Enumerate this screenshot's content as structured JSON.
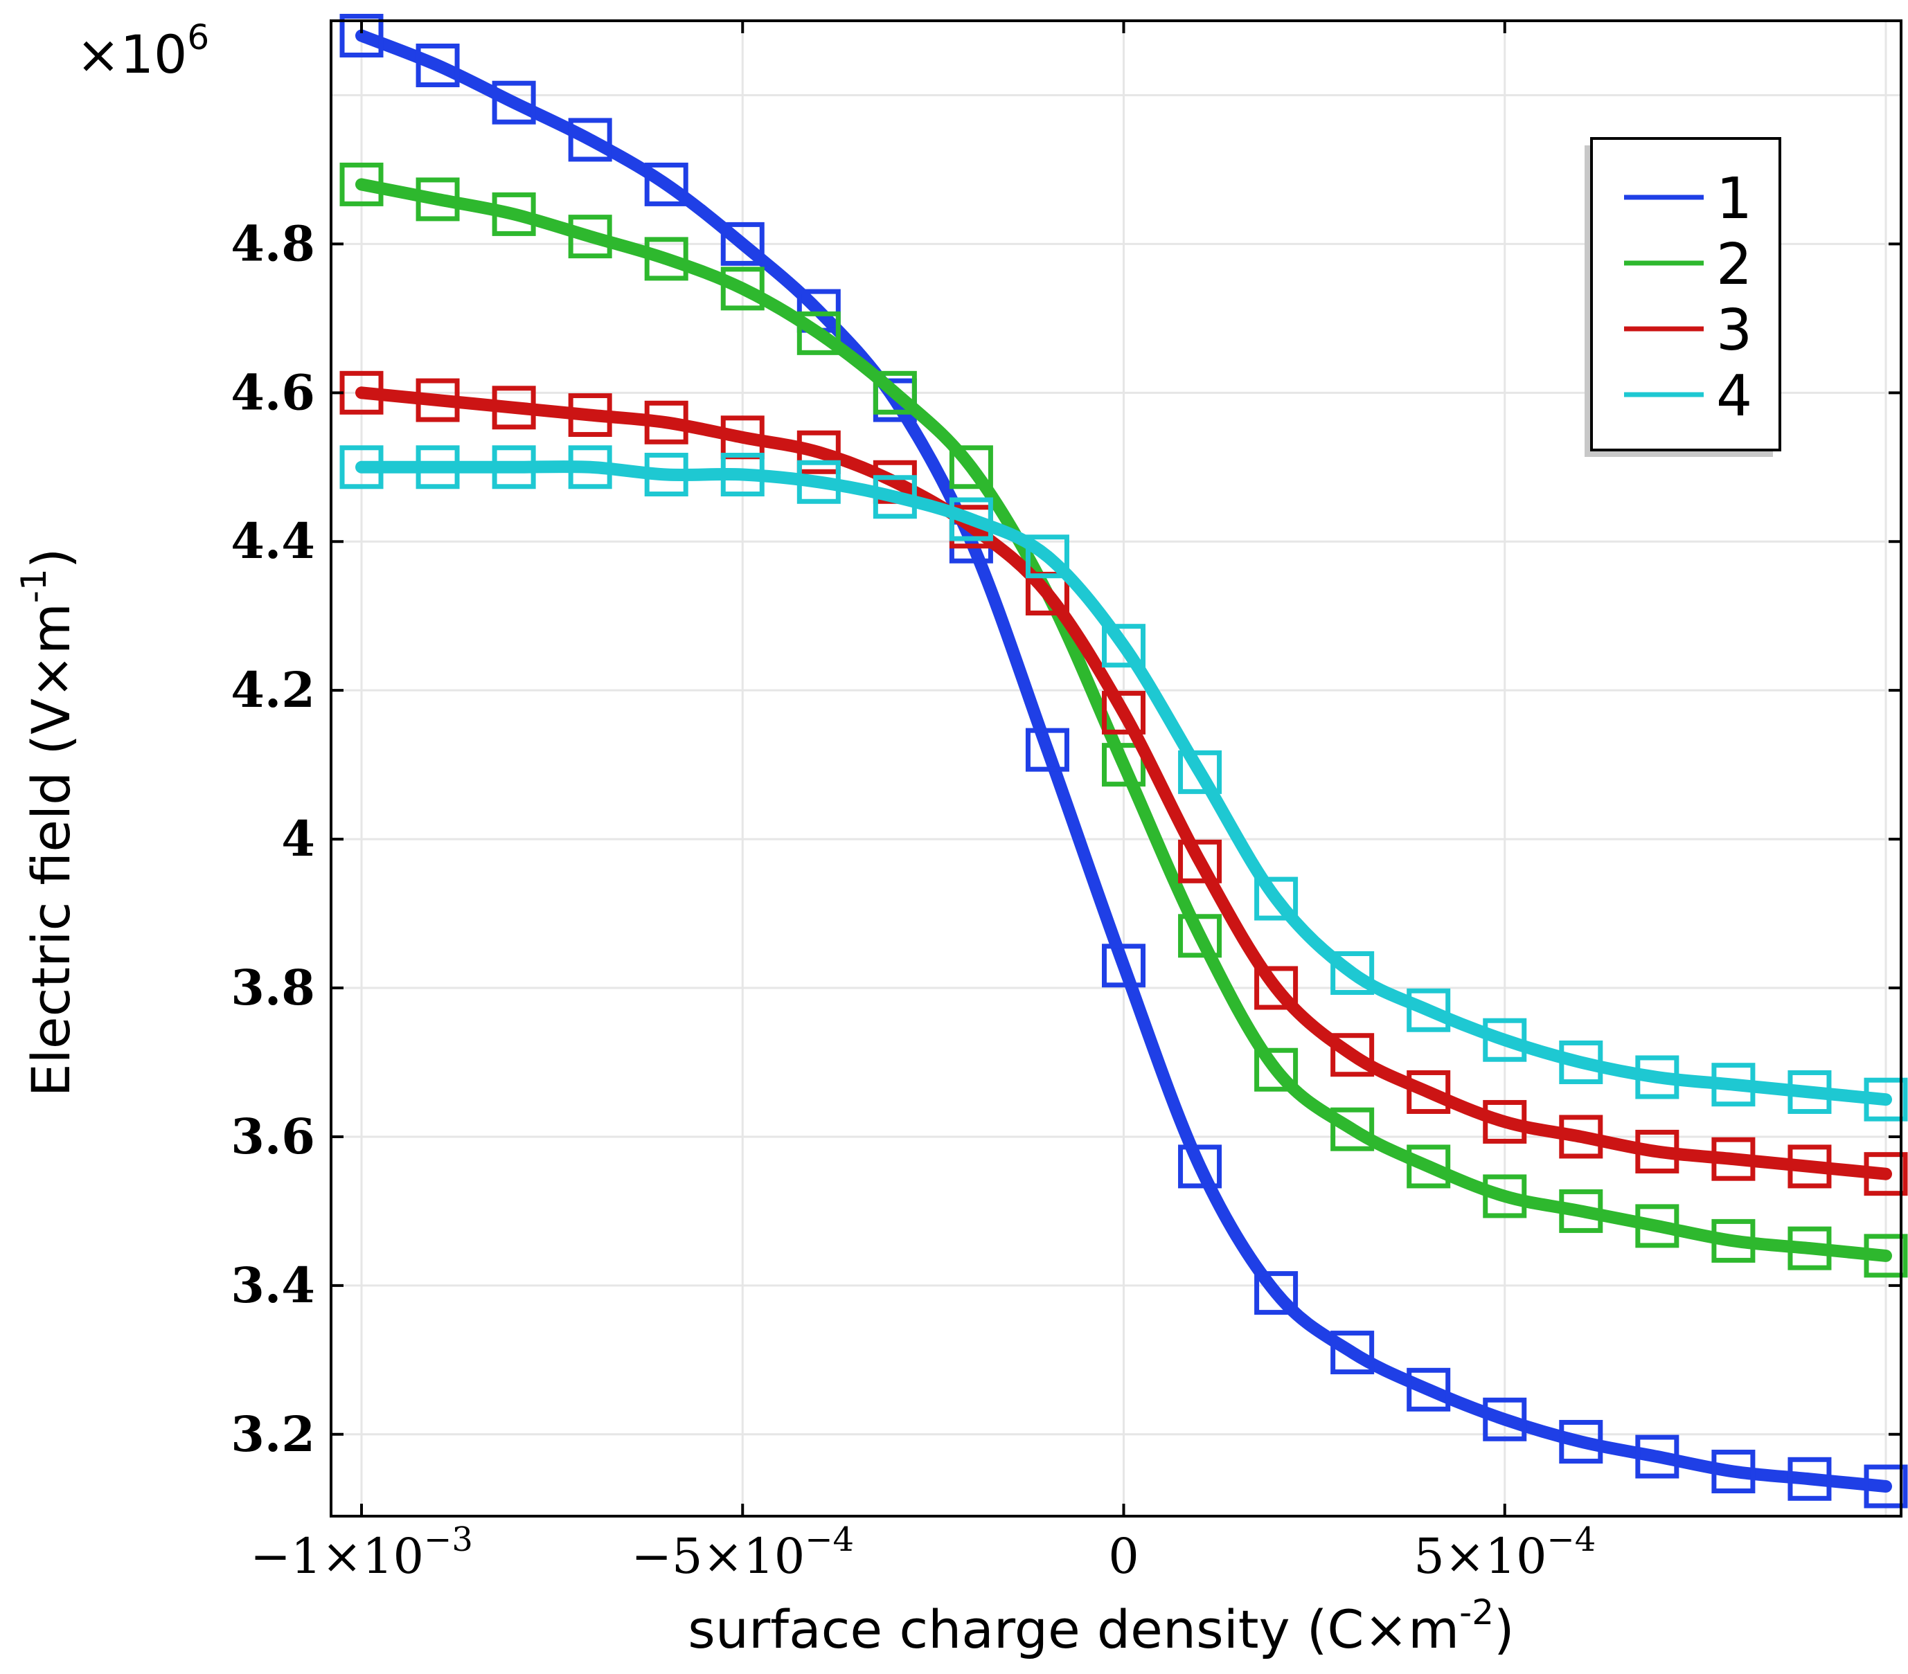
{
  "chart_data": {
    "type": "line",
    "title": "",
    "multiplier_label": "×10",
    "multiplier_exponent": "6",
    "ylabel": "Electric field (V×m",
    "ylabel_exponent": "-1",
    "ylabel_close": ")",
    "xlabel": "surface charge density (C×m",
    "xlabel_exponent": "-2",
    "xlabel_close": ")",
    "xlim": [
      -0.00104,
      0.00102
    ],
    "ylim": [
      3.09,
      5.1
    ],
    "x_ticks": [
      {
        "value": -0.001,
        "mantissa": "−1×10",
        "exponent": "−3"
      },
      {
        "value": -0.0005,
        "mantissa": "−5×10",
        "exponent": "−4"
      },
      {
        "value": 0,
        "mantissa": "0",
        "exponent": ""
      },
      {
        "value": 0.0005,
        "mantissa": "5×10",
        "exponent": "−4"
      }
    ],
    "y_ticks": [
      {
        "value": 3.2,
        "label": "3.2"
      },
      {
        "value": 3.4,
        "label": "3.4"
      },
      {
        "value": 3.6,
        "label": "3.6"
      },
      {
        "value": 3.8,
        "label": "3.8"
      },
      {
        "value": 4.0,
        "label": "4"
      },
      {
        "value": 4.2,
        "label": "4.2"
      },
      {
        "value": 4.4,
        "label": "4.4"
      },
      {
        "value": 4.6,
        "label": "4.6"
      },
      {
        "value": 4.8,
        "label": "4.8"
      }
    ],
    "x_grid": [
      -0.001,
      -0.0005,
      0,
      0.0005,
      0.001
    ],
    "y_grid": [
      3.2,
      3.4,
      3.6,
      3.8,
      4.0,
      4.2,
      4.4,
      4.6,
      4.8,
      5.0
    ],
    "grid": true,
    "legend_position": "top-right",
    "x": [
      -0.001,
      -0.0009,
      -0.0008,
      -0.0007,
      -0.0006,
      -0.0005,
      -0.0004,
      -0.0003,
      -0.0002,
      -0.0001,
      0,
      0.0001,
      0.0002,
      0.0003,
      0.0004,
      0.0005,
      0.0006,
      0.0007,
      0.0008,
      0.0009,
      0.001
    ],
    "series": [
      {
        "name": "1",
        "color": "#1f3fe6",
        "values": [
          5.08,
          5.04,
          4.99,
          4.94,
          4.88,
          4.8,
          4.71,
          4.59,
          4.4,
          4.12,
          3.83,
          3.56,
          3.39,
          3.31,
          3.26,
          3.22,
          3.19,
          3.17,
          3.15,
          3.14,
          3.13
        ]
      },
      {
        "name": "2",
        "color": "#2eb82e",
        "values": [
          4.88,
          4.86,
          4.84,
          4.81,
          4.78,
          4.74,
          4.68,
          4.6,
          4.5,
          4.33,
          4.1,
          3.87,
          3.69,
          3.61,
          3.56,
          3.52,
          3.5,
          3.48,
          3.46,
          3.45,
          3.44
        ]
      },
      {
        "name": "3",
        "color": "#cc1414",
        "values": [
          4.6,
          4.59,
          4.58,
          4.57,
          4.56,
          4.54,
          4.52,
          4.48,
          4.42,
          4.33,
          4.17,
          3.97,
          3.8,
          3.71,
          3.66,
          3.62,
          3.6,
          3.58,
          3.57,
          3.56,
          3.55
        ]
      },
      {
        "name": "4",
        "color": "#1ec8d2",
        "values": [
          4.5,
          4.5,
          4.5,
          4.5,
          4.49,
          4.49,
          4.48,
          4.46,
          4.43,
          4.38,
          4.26,
          4.09,
          3.92,
          3.82,
          3.77,
          3.73,
          3.7,
          3.68,
          3.67,
          3.66,
          3.65
        ]
      }
    ]
  }
}
